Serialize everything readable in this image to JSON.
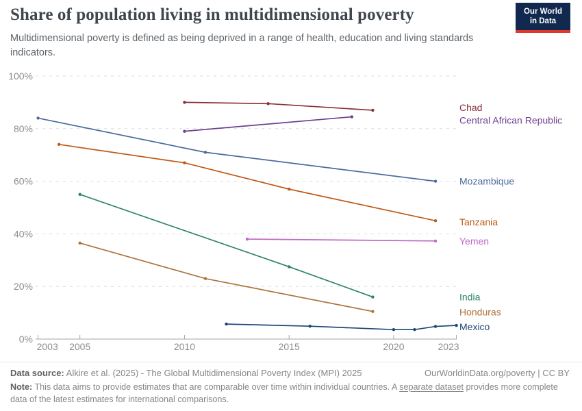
{
  "header": {
    "title": "Share of population living in multidimensional poverty",
    "subtitle": "Multidimensional poverty is defined as being deprived in a range of health, education and living standards indicators.",
    "logo": {
      "line1": "Our World",
      "line2": "in Data",
      "bg_color": "#12294F",
      "bar_color": "#E0372E",
      "text_color": "#FFFFFF"
    }
  },
  "chart_data": {
    "type": "line",
    "title": "Share of population living in multidimensional poverty",
    "xlabel": "",
    "ylabel": "",
    "xlim": [
      2003,
      2023
    ],
    "ylim": [
      0,
      100
    ],
    "x_ticks": [
      2003,
      2005,
      2010,
      2015,
      2020,
      2023
    ],
    "y_ticks": [
      0,
      20,
      40,
      60,
      80,
      100
    ],
    "y_tick_suffix": "%",
    "grid": "horizontal-dashed",
    "legend_position": "right-edge-line-labels",
    "axis_color": "#a5a5a5",
    "grid_color": "#dcdcdc",
    "tick_label_color": "#8c8c8c",
    "series": [
      {
        "name": "Chad",
        "color": "#883039",
        "label_dy": -4,
        "points": [
          [
            2010,
            90
          ],
          [
            2014,
            89.5
          ],
          [
            2019,
            87
          ]
        ]
      },
      {
        "name": "Central African Republic",
        "color": "#6D3E91",
        "label_dy": 5,
        "points": [
          [
            2010,
            79
          ],
          [
            2018,
            84.5
          ]
        ]
      },
      {
        "name": "Mozambique",
        "color": "#4C6A9C",
        "label_dy": 0,
        "points": [
          [
            2003,
            84
          ],
          [
            2011,
            71
          ],
          [
            2022,
            60
          ]
        ]
      },
      {
        "name": "Tanzania",
        "color": "#BE5915",
        "label_dy": 2,
        "points": [
          [
            2004,
            74
          ],
          [
            2010,
            67
          ],
          [
            2015,
            57
          ],
          [
            2022,
            45
          ]
        ]
      },
      {
        "name": "Yemen",
        "color": "#C169C4",
        "label_dy": 0,
        "points": [
          [
            2013,
            38
          ],
          [
            2022,
            37.3
          ]
        ]
      },
      {
        "name": "India",
        "color": "#2C8465",
        "label_dy": 0,
        "points": [
          [
            2005,
            55
          ],
          [
            2015,
            27.5
          ],
          [
            2019,
            16
          ]
        ]
      },
      {
        "name": "Honduras",
        "color": "#AE7339",
        "label_dy": 1,
        "points": [
          [
            2005,
            36.5
          ],
          [
            2011,
            23
          ],
          [
            2019,
            10.5
          ]
        ]
      },
      {
        "name": "Mexico",
        "color": "#1D4577",
        "label_dy": 2,
        "points": [
          [
            2012,
            5.7
          ],
          [
            2016,
            4.9
          ],
          [
            2020,
            3.6
          ],
          [
            2021,
            3.6
          ],
          [
            2022,
            4.8
          ],
          [
            2023,
            5.2
          ]
        ]
      }
    ]
  },
  "footer": {
    "datasource_label": "Data source:",
    "datasource_text": "Alkire et al. (2025) - The Global Multidimensional Poverty Index (MPI) 2025",
    "attribution_url": "OurWorldinData.org/poverty",
    "attribution_divider": "|",
    "attribution_license": "CC BY",
    "note_label": "Note:",
    "note_text_1": "This data aims to provide estimates that are comparable over time within individual countries. A",
    "note_link": "separate dataset",
    "note_text_2": "provides more complete data of the latest estimates for international comparisons."
  }
}
